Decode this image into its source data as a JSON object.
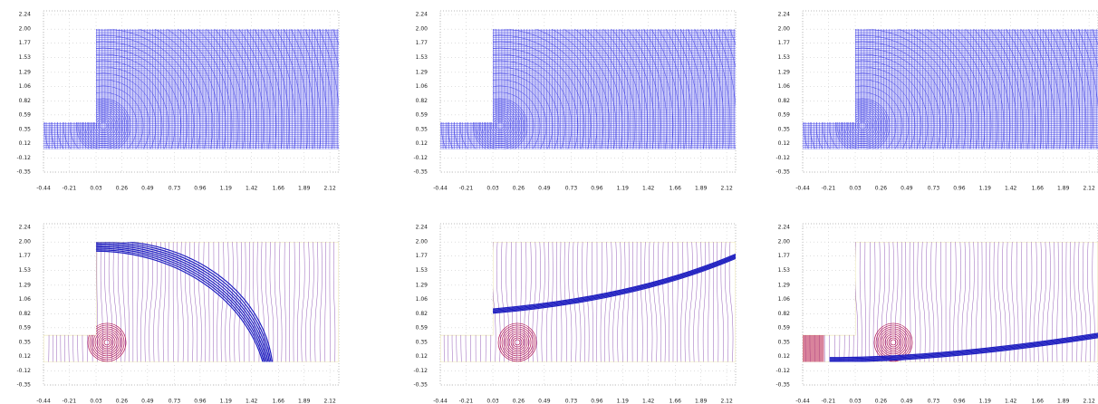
{
  "chart_data": [
    {
      "type": "mesh",
      "color": "#2f2fe0",
      "grid": true,
      "xlim": [
        -0.44,
        2.2
      ],
      "ylim": [
        -0.35,
        2.3
      ],
      "xticks": [
        -0.44,
        -0.21,
        0.03,
        0.26,
        0.49,
        0.73,
        0.96,
        1.19,
        1.42,
        1.66,
        1.89,
        2.12
      ],
      "yticks": [
        -0.35,
        -0.12,
        0.12,
        0.35,
        0.59,
        0.82,
        1.06,
        1.29,
        1.53,
        1.77,
        {
          "value": 2,
          "label": "2.00"
        },
        2.24
      ]
    },
    {
      "type": "mesh",
      "color": "#2f2fe0",
      "grid": true,
      "xlim": [
        -0.44,
        2.2
      ],
      "ylim": [
        -0.35,
        2.3
      ],
      "xticks": [
        -0.44,
        -0.21,
        0.03,
        0.26,
        0.49,
        0.73,
        0.96,
        1.19,
        1.42,
        1.66,
        1.89,
        2.12
      ],
      "yticks": [
        -0.35,
        -0.12,
        0.12,
        0.35,
        0.59,
        0.82,
        1.06,
        1.29,
        1.53,
        1.77,
        {
          "value": 2,
          "label": "2.00"
        },
        2.24
      ]
    },
    {
      "type": "mesh",
      "color": "#2f2fe0",
      "grid": true,
      "xlim": [
        -0.44,
        2.2
      ],
      "ylim": [
        -0.35,
        2.3
      ],
      "xticks": [
        -0.44,
        -0.21,
        0.03,
        0.26,
        0.49,
        0.73,
        0.96,
        1.19,
        1.42,
        1.66,
        1.89,
        2.12
      ],
      "yticks": [
        -0.35,
        -0.12,
        0.12,
        0.35,
        0.59,
        0.82,
        1.06,
        1.29,
        1.53,
        1.77,
        {
          "value": 2,
          "label": "2.00"
        },
        2.24
      ]
    },
    {
      "type": "contour",
      "color": "#6a1b9a",
      "grid": true,
      "xlim": [
        -0.44,
        2.2
      ],
      "ylim": [
        -0.35,
        2.3
      ],
      "xticks": [
        -0.44,
        -0.21,
        0.03,
        0.26,
        0.49,
        0.73,
        0.96,
        1.19,
        1.42,
        1.66,
        1.89,
        2.12
      ],
      "yticks": [
        -0.35,
        -0.12,
        0.12,
        0.35,
        0.59,
        0.82,
        1.06,
        1.29,
        1.53,
        1.77,
        {
          "value": 2,
          "label": "2.00"
        },
        2.24
      ]
    },
    {
      "type": "contour",
      "color": "#6a1b9a",
      "grid": true,
      "xlim": [
        -0.44,
        2.2
      ],
      "ylim": [
        -0.35,
        2.3
      ],
      "xticks": [
        -0.44,
        -0.21,
        0.03,
        0.26,
        0.49,
        0.73,
        0.96,
        1.19,
        1.42,
        1.66,
        1.89,
        2.12
      ],
      "yticks": [
        -0.35,
        -0.12,
        0.12,
        0.35,
        0.59,
        0.82,
        1.06,
        1.29,
        1.53,
        1.77,
        {
          "value": 2,
          "label": "2.00"
        },
        2.24
      ]
    },
    {
      "type": "contour",
      "color": "#6a1b9a",
      "grid": true,
      "xlim": [
        -0.44,
        2.2
      ],
      "ylim": [
        -0.35,
        2.3
      ],
      "xticks": [
        -0.44,
        -0.21,
        0.03,
        0.26,
        0.49,
        0.73,
        0.96,
        1.19,
        1.42,
        1.66,
        1.89,
        2.12
      ],
      "yticks": [
        -0.35,
        -0.12,
        0.12,
        0.35,
        0.59,
        0.82,
        1.06,
        1.29,
        1.53,
        1.77,
        {
          "value": 2,
          "label": "2.00"
        },
        2.24
      ]
    }
  ]
}
